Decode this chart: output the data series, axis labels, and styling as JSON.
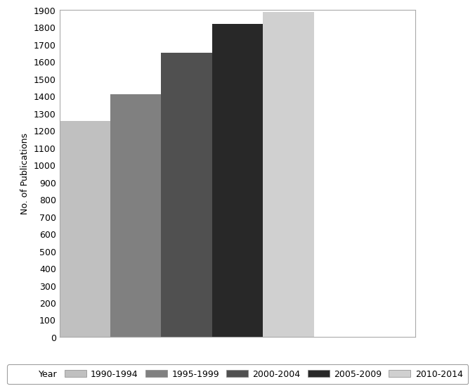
{
  "categories": [
    "1990-1994",
    "1995-1999",
    "2000-2004",
    "2005-2009",
    "2010-2014"
  ],
  "values": [
    1255,
    1410,
    1650,
    1820,
    1890
  ],
  "bar_colors": [
    "#c0c0c0",
    "#808080",
    "#505050",
    "#282828",
    "#d0d0d0"
  ],
  "ylabel": "No. of Publications",
  "ylim": [
    0,
    1900
  ],
  "yticks": [
    0,
    100,
    200,
    300,
    400,
    500,
    600,
    700,
    800,
    900,
    1000,
    1100,
    1200,
    1300,
    1400,
    1500,
    1600,
    1700,
    1800,
    1900
  ],
  "legend_label": "Year",
  "background_color": "#ffffff",
  "legend_entries": [
    "1990-1994",
    "1995-1999",
    "2000-2004",
    "2005-2009",
    "2010-2014"
  ],
  "legend_colors": [
    "#c0c0c0",
    "#808080",
    "#505050",
    "#282828",
    "#d0d0d0"
  ],
  "spine_color": "#aaaaaa",
  "tick_fontsize": 9,
  "ylabel_fontsize": 9,
  "bar_width": 1.0,
  "xlim_left": -0.5,
  "xlim_right": 6.5
}
